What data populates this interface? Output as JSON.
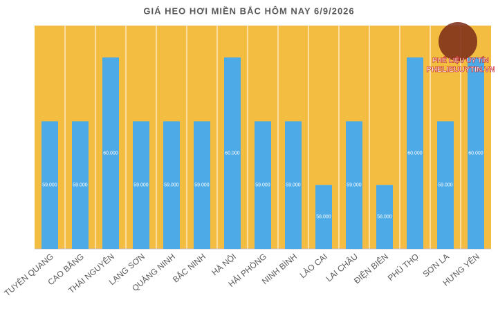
{
  "chart_data": {
    "type": "bar",
    "title": "GIÁ HEO HƠI MIỀN BẮC HÔM NAY 6/9/2026",
    "categories": [
      "TUYÊN QUANG",
      "CAO BẰNG",
      "THÁI NGUYÊN",
      "LẠNG SƠN",
      "QUẢNG NINH",
      "BẮC NINH",
      "HÀ NỘI",
      "HẢI PHÒNG",
      "NINH BÌNH",
      "LÀO CAI",
      "LAI CHÂU",
      "ĐIỆN BIÊN",
      "PHÚ THỌ",
      "SƠN LA",
      "HƯNG YÊN"
    ],
    "values": [
      59000,
      59000,
      60000,
      59000,
      59000,
      59000,
      60000,
      59000,
      59000,
      58000,
      59000,
      58000,
      60000,
      59000,
      60000
    ],
    "value_labels": [
      "59.000",
      "59.000",
      "60.000",
      "59.000",
      "59.000",
      "59.000",
      "60.000",
      "59.000",
      "59.000",
      "58.000",
      "59.000",
      "58.000",
      "60.000",
      "59.000",
      "60.000"
    ],
    "color": "#4eaae6",
    "background": "#f3bd42",
    "ylim": [
      57000,
      60500
    ]
  },
  "watermark": {
    "line1": "PHẾ LIỆU UY TÍN",
    "line2": "PHELIEUUYTIN.VN"
  }
}
